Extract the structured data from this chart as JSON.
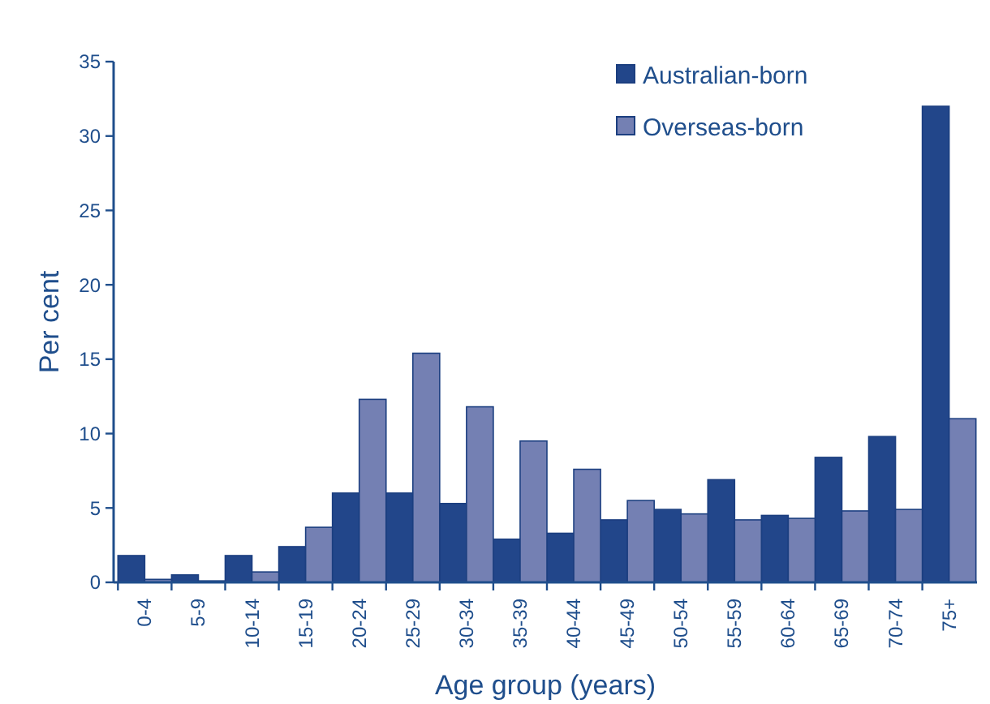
{
  "chart_data": {
    "type": "bar",
    "xlabel": "Age group (years)",
    "ylabel": "Per cent",
    "categories": [
      "0-4",
      "5-9",
      "10-14",
      "15-19",
      "20-24",
      "25-29",
      "30-34",
      "35-39",
      "40-44",
      "45-49",
      "50-54",
      "55-59",
      "60-64",
      "65-69",
      "70-74",
      "75+"
    ],
    "series": [
      {
        "name": "Australian-born",
        "color": "#22468a",
        "values": [
          1.8,
          0.5,
          1.8,
          2.4,
          6.0,
          6.0,
          5.3,
          2.9,
          3.3,
          4.2,
          4.9,
          6.9,
          4.5,
          8.4,
          9.8,
          32.0
        ]
      },
      {
        "name": "Overseas-born",
        "color": "#7480b3",
        "values": [
          0.2,
          0.1,
          0.7,
          3.7,
          12.3,
          15.4,
          11.8,
          9.5,
          7.6,
          5.5,
          4.6,
          4.2,
          4.3,
          4.8,
          4.9,
          11.0
        ]
      }
    ],
    "ylim": [
      0,
      35
    ],
    "yticks": [
      0,
      5,
      10,
      15,
      20,
      25,
      30,
      35
    ],
    "legend": "top right"
  }
}
